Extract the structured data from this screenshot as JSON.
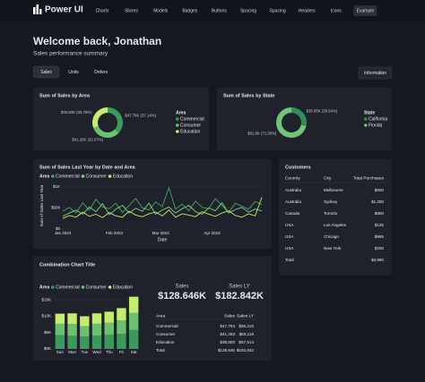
{
  "nav": {
    "logo": "Power UI",
    "items": [
      "Charts",
      "Slicers",
      "Models",
      "Badges",
      "Buttons",
      "Spacing",
      "Spacing",
      "Headers",
      "Icons",
      "Example"
    ],
    "active": 9
  },
  "header": {
    "title": "Welcome back, Jonathan",
    "subtitle": "Sales performance summary"
  },
  "tabs": {
    "items": [
      "Sales",
      "Units",
      "Orders"
    ],
    "active": 0
  },
  "info_button": "Information",
  "chart_data": [
    {
      "type": "pie",
      "donut": true,
      "title": "Sum of Sales by Area",
      "legend_title": "Area",
      "categories": [
        "Commercial",
        "Consumer",
        "Education"
      ],
      "values": [
        47.78,
        41.26,
        39.6
      ],
      "value_labels": [
        "$47.78K (37.14%)",
        "$41.26K (32.07%)",
        "$39.60K (30.78%)"
      ],
      "colors": [
        "#3a9a5b",
        "#6cc070",
        "#c5ec6a"
      ]
    },
    {
      "type": "pie",
      "donut": true,
      "title": "Sum of Sales by State",
      "legend_title": "State",
      "categories": [
        "California",
        "Florida"
      ],
      "values": [
        36.85,
        91.8
      ],
      "value_labels": [
        "$36.85K (28.64%)",
        "$91.8K (71.36%)"
      ],
      "colors": [
        "#2f8f55",
        "#6fc47a"
      ]
    },
    {
      "type": "line",
      "title": "Sum of Sales Last Year by Date and Area",
      "legend_title": "Area",
      "x_label": "Date",
      "y_label": "Sum of Sales Last Year",
      "x": [
        0,
        4,
        8,
        12,
        16,
        20,
        24,
        28,
        32,
        36,
        40,
        44,
        48,
        52,
        56,
        60,
        64,
        68,
        72,
        76,
        80,
        84,
        88,
        92,
        96,
        100,
        104,
        108,
        112,
        116,
        120
      ],
      "xlim": [
        0,
        120
      ],
      "xticks": [
        {
          "value": 0,
          "label": "Jan 2023"
        },
        {
          "value": 31,
          "label": "Feb 2023"
        },
        {
          "value": 59,
          "label": "Mar 2023"
        },
        {
          "value": 90,
          "label": "Apr 2023"
        }
      ],
      "ylim": [
        0,
        1100
      ],
      "yticks": [
        {
          "value": 0,
          "label": "$0"
        },
        {
          "value": 500,
          "label": "$500"
        },
        {
          "value": 1000,
          "label": "$1K"
        }
      ],
      "series": [
        {
          "name": "Commercial",
          "color": "#3fa86a",
          "values": [
            420,
            510,
            380,
            620,
            450,
            700,
            520,
            480,
            610,
            390,
            560,
            720,
            500,
            450,
            640,
            530,
            980,
            470,
            590,
            430,
            660,
            510,
            480,
            720,
            560,
            390,
            610,
            540,
            470,
            650,
            580
          ]
        },
        {
          "name": "Consumer",
          "color": "#79d37c",
          "values": [
            300,
            380,
            450,
            350,
            520,
            410,
            600,
            340,
            470,
            560,
            380,
            490,
            420,
            610,
            350,
            450,
            520,
            380,
            480,
            560,
            410,
            350,
            500,
            430,
            620,
            380,
            460,
            510,
            400,
            470,
            430
          ]
        },
        {
          "name": "Education",
          "color": "#c5ec6a",
          "values": [
            250,
            320,
            280,
            400,
            300,
            350,
            270,
            390,
            310,
            280,
            420,
            330,
            290,
            360,
            400,
            310,
            450,
            280,
            360,
            330,
            290,
            410,
            350,
            300,
            380,
            430,
            320,
            280,
            360,
            310,
            750
          ]
        }
      ]
    },
    {
      "type": "bar",
      "stacked": true,
      "title": "Combination Chart Title",
      "legend_title": "Area",
      "categories": [
        "Sun",
        "Mon",
        "Tue",
        "Wed",
        "Thu",
        "Fri",
        "Sat"
      ],
      "ylim": [
        0,
        17
      ],
      "yticks": [
        {
          "value": 0,
          "label": "$0K"
        },
        {
          "value": 5,
          "label": "$5K"
        },
        {
          "value": 10,
          "label": "$10K"
        },
        {
          "value": 15,
          "label": "$15K"
        }
      ],
      "series": [
        {
          "name": "Commercial",
          "color": "#3a9a5b",
          "values": [
            4.2,
            4.0,
            3.8,
            4.1,
            4.3,
            4.6,
            5.8
          ]
        },
        {
          "name": "Consumer",
          "color": "#6cc070",
          "values": [
            3.5,
            3.6,
            3.2,
            3.6,
            3.7,
            4.1,
            5.2
          ]
        },
        {
          "name": "Education",
          "color": "#c5ec6a",
          "values": [
            3.1,
            3.3,
            3.0,
            3.2,
            3.4,
            3.8,
            5.0
          ]
        }
      ]
    }
  ],
  "customers": {
    "title": "Customers",
    "columns": [
      "Country",
      "City",
      "Total Purchases"
    ],
    "rows": [
      [
        "Australia",
        "Melbourne",
        "$600"
      ],
      [
        "Australia",
        "Sydney",
        "$1,300"
      ],
      [
        "Canada",
        "Toronto",
        "$800"
      ],
      [
        "USA",
        "Los Angeles",
        "$125"
      ],
      [
        "USA",
        "Chicago",
        "$965"
      ],
      [
        "USA",
        "New York",
        "$200"
      ],
      [
        "Total",
        "",
        "$3,990"
      ]
    ]
  },
  "kpis": [
    {
      "label": "Sales",
      "value": "$128.646K"
    },
    {
      "label": "Sales LY",
      "value": "$182.842K"
    }
  ],
  "summary_table": {
    "columns": [
      "Area",
      "Sales",
      "Sales LY"
    ],
    "rows": [
      [
        "Commercial",
        "$47,784",
        "$65,210"
      ],
      [
        "Consumer",
        "$41,262",
        "$60,118"
      ],
      [
        "Education",
        "$39,600",
        "$57,514"
      ],
      [
        "Total",
        "$128,646",
        "$182,842"
      ]
    ]
  }
}
